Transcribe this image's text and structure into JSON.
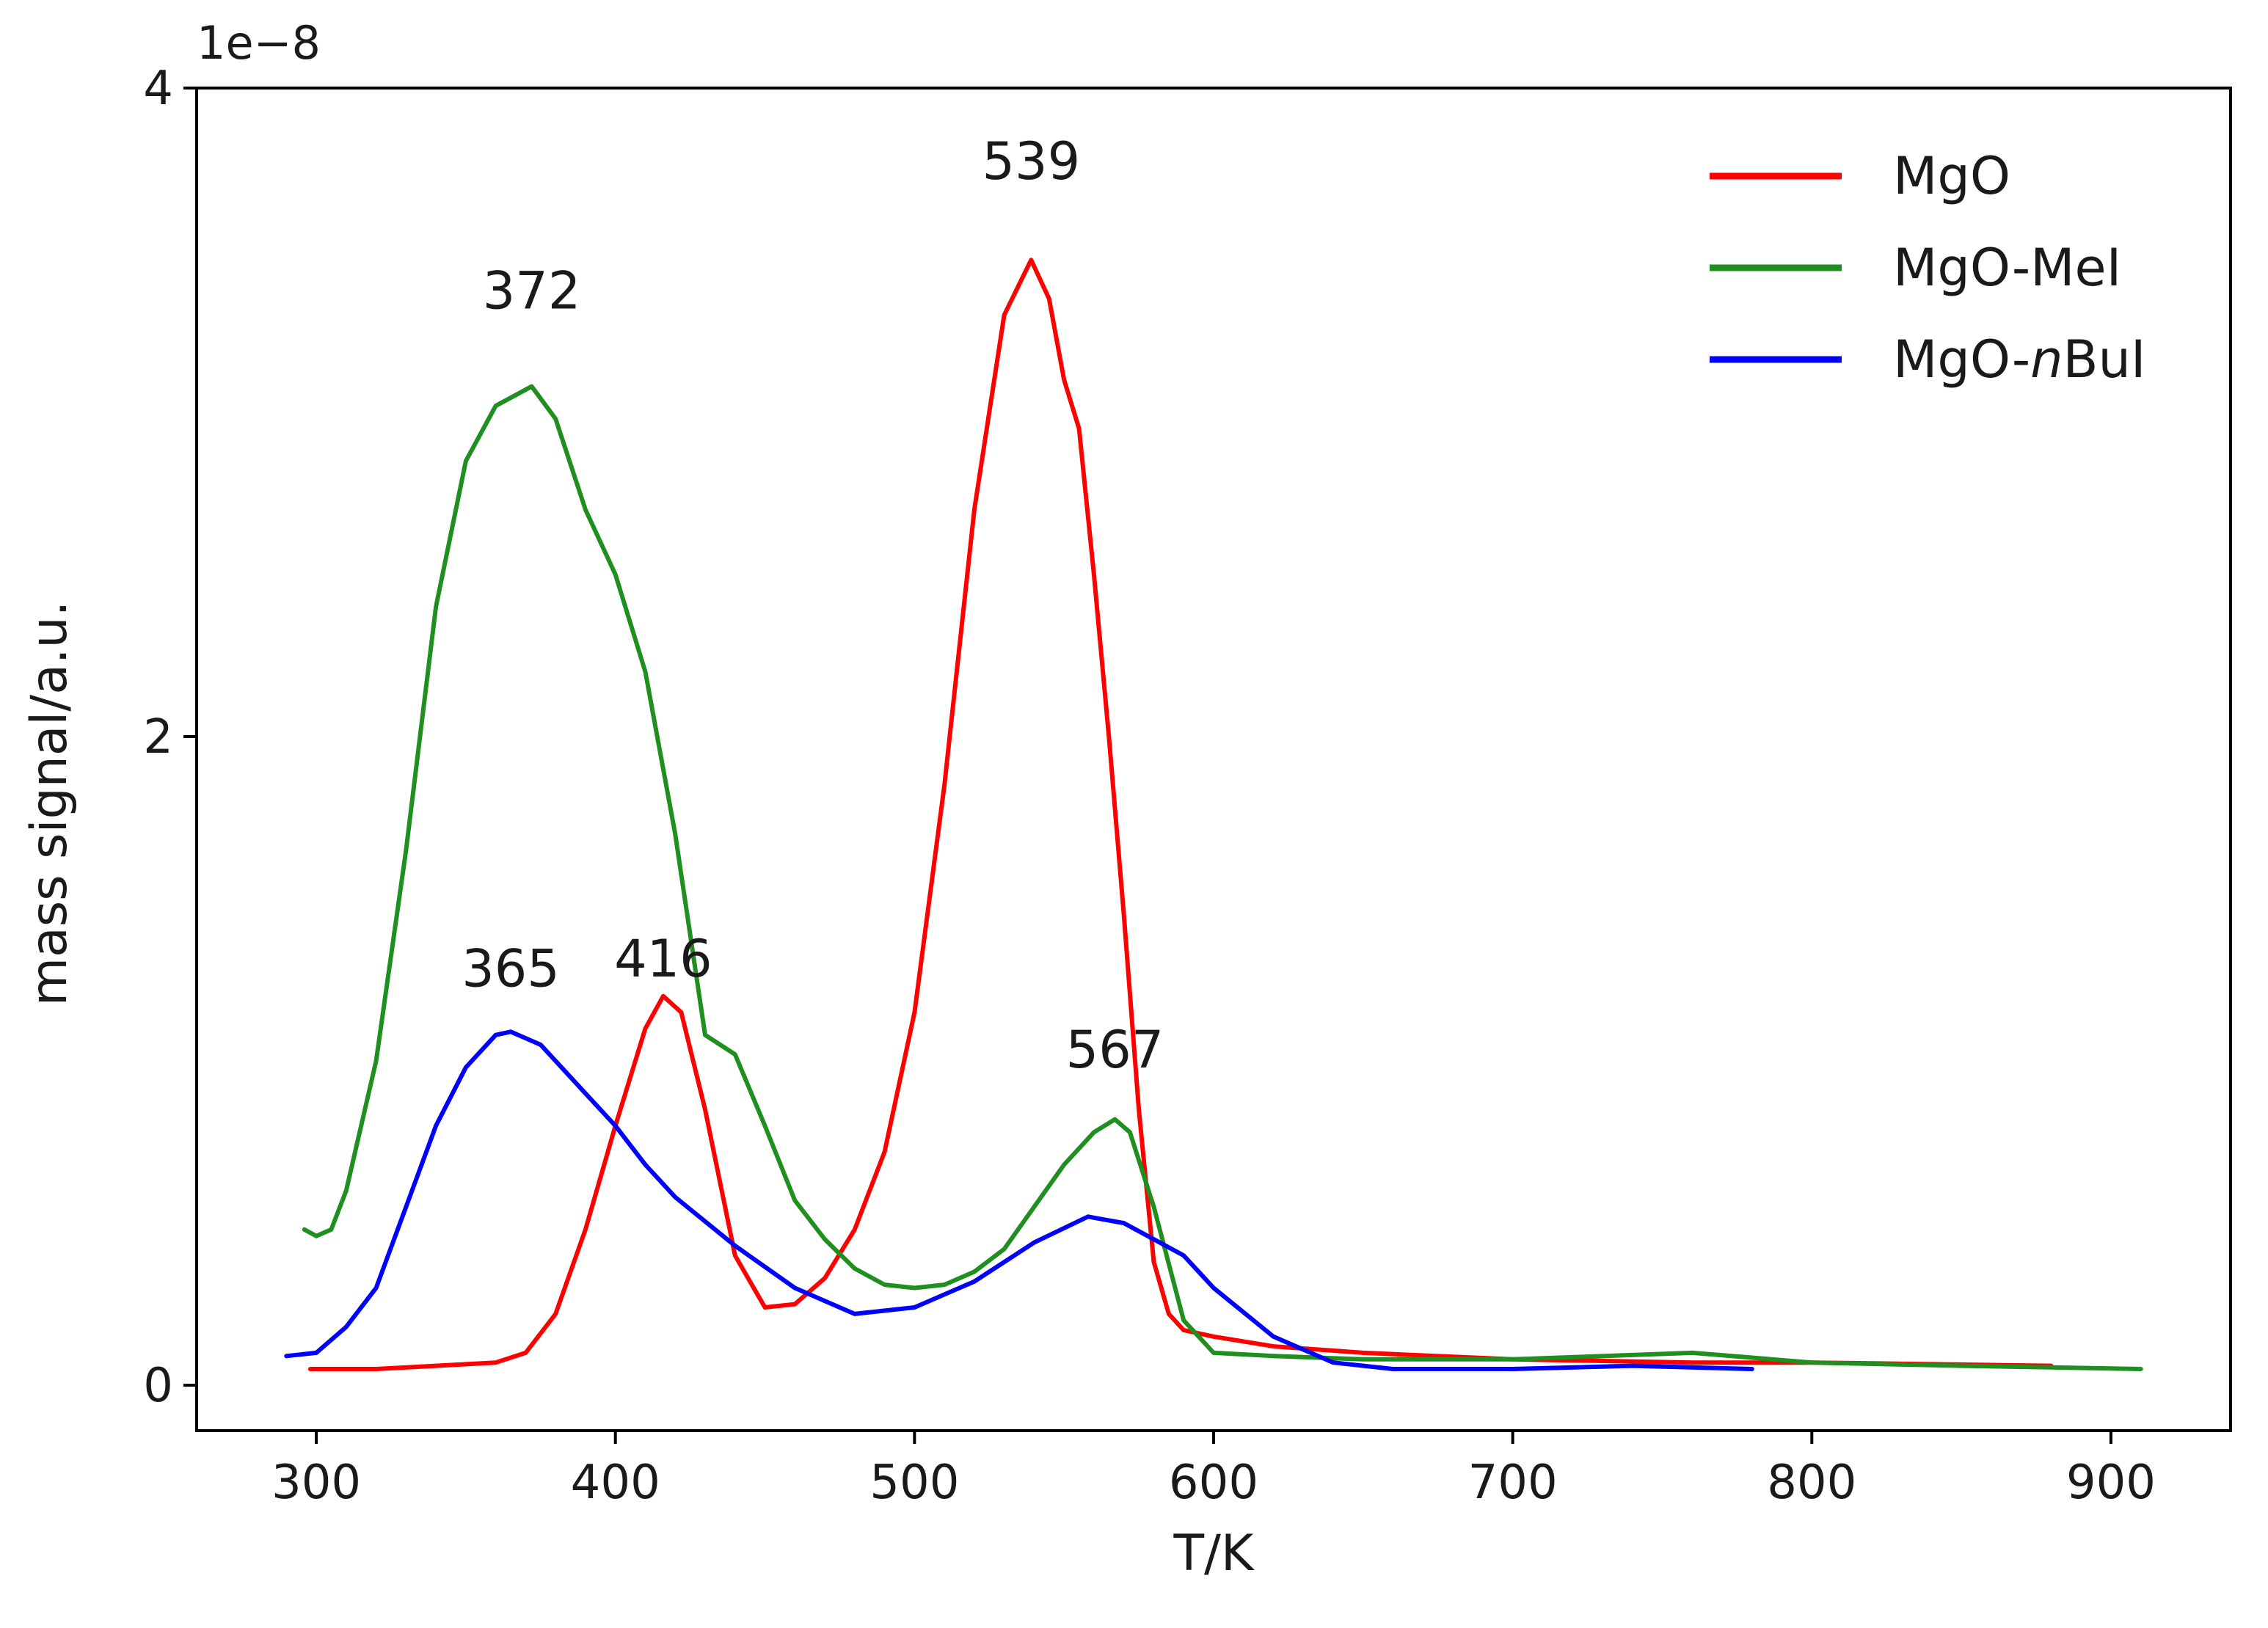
{
  "chart_data": {
    "type": "line",
    "xlabel": "T/K",
    "ylabel": "mass signal/a.u.",
    "offset_text": "1e−8",
    "xlim": [
      260,
      940
    ],
    "ylim": [
      -0.14,
      4.0
    ],
    "x_ticks": [
      300,
      400,
      500,
      600,
      700,
      800,
      900
    ],
    "x_tick_labels": [
      "300",
      "400",
      "500",
      "600",
      "700",
      "800",
      "900"
    ],
    "y_ticks": [
      0,
      2,
      4
    ],
    "y_tick_labels": [
      "0",
      "2",
      "4"
    ],
    "grid": false,
    "legend_position": "top-right",
    "series": [
      {
        "name": "MgO",
        "legend_prefix": "MgO",
        "legend_italic": "",
        "legend_suffix": "",
        "color": "#ff0000",
        "x": [
          298,
          320,
          340,
          360,
          370,
          380,
          390,
          400,
          410,
          416,
          422,
          430,
          440,
          450,
          460,
          470,
          480,
          490,
          500,
          510,
          520,
          530,
          539,
          545,
          550,
          555,
          560,
          565,
          570,
          575,
          580,
          585,
          590,
          600,
          620,
          650,
          700,
          760,
          800,
          880
        ],
        "y": [
          0.05,
          0.05,
          0.06,
          0.07,
          0.1,
          0.22,
          0.48,
          0.8,
          1.1,
          1.2,
          1.15,
          0.85,
          0.4,
          0.24,
          0.25,
          0.33,
          0.48,
          0.72,
          1.15,
          1.85,
          2.7,
          3.3,
          3.47,
          3.35,
          3.1,
          2.95,
          2.5,
          2.0,
          1.45,
          0.85,
          0.38,
          0.22,
          0.17,
          0.15,
          0.12,
          0.1,
          0.08,
          0.07,
          0.07,
          0.06
        ]
      },
      {
        "name": "MgO-MeI",
        "legend_prefix": "MgO-MeI",
        "legend_italic": "",
        "legend_suffix": "",
        "color": "#1f8f1f",
        "x": [
          296,
          300,
          305,
          310,
          320,
          330,
          340,
          350,
          360,
          372,
          380,
          390,
          400,
          410,
          420,
          430,
          440,
          450,
          460,
          470,
          480,
          490,
          500,
          510,
          520,
          530,
          540,
          550,
          560,
          567,
          572,
          580,
          590,
          600,
          620,
          650,
          700,
          760,
          800,
          850,
          910
        ],
        "y": [
          0.48,
          0.46,
          0.48,
          0.6,
          1.0,
          1.65,
          2.4,
          2.85,
          3.02,
          3.08,
          2.98,
          2.7,
          2.5,
          2.2,
          1.7,
          1.08,
          1.02,
          0.8,
          0.57,
          0.45,
          0.36,
          0.31,
          0.3,
          0.31,
          0.35,
          0.42,
          0.55,
          0.68,
          0.78,
          0.82,
          0.78,
          0.55,
          0.2,
          0.1,
          0.09,
          0.08,
          0.08,
          0.1,
          0.07,
          0.06,
          0.05
        ]
      },
      {
        "name": "MgO-nBuI",
        "legend_prefix": "MgO-",
        "legend_italic": "n",
        "legend_suffix": "BuI",
        "color": "#0000ff",
        "x": [
          290,
          300,
          310,
          320,
          330,
          340,
          350,
          360,
          365,
          375,
          390,
          400,
          410,
          420,
          440,
          460,
          480,
          500,
          520,
          540,
          558,
          570,
          580,
          590,
          600,
          620,
          640,
          660,
          700,
          740,
          780
        ],
        "y": [
          0.09,
          0.1,
          0.18,
          0.3,
          0.55,
          0.8,
          0.98,
          1.08,
          1.09,
          1.05,
          0.9,
          0.8,
          0.68,
          0.58,
          0.43,
          0.3,
          0.22,
          0.24,
          0.32,
          0.44,
          0.52,
          0.5,
          0.45,
          0.4,
          0.3,
          0.15,
          0.07,
          0.05,
          0.05,
          0.06,
          0.05
        ]
      }
    ],
    "annotations": [
      {
        "text": "372",
        "x": 372,
        "y": 3.32
      },
      {
        "text": "539",
        "x": 539,
        "y": 3.72
      },
      {
        "text": "365",
        "x": 365,
        "y": 1.23
      },
      {
        "text": "416",
        "x": 416,
        "y": 1.26
      },
      {
        "text": "567",
        "x": 567,
        "y": 0.98
      }
    ]
  }
}
